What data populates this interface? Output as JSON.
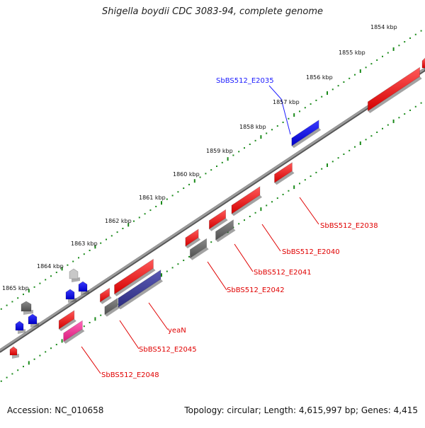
{
  "title": "Shigella boydii CDC 3083-94, complete genome",
  "footer": {
    "accession": "Accession: NC_010658",
    "summary": "Topology: circular; Length: 4,615,997 bp; Genes: 4,415"
  },
  "scale_labels": [
    "1854 kbp",
    "1855 kbp",
    "1856 kbp",
    "1857 kbp",
    "1858 kbp",
    "1859 kbp",
    "1860 kbp",
    "1861 kbp",
    "1862 kbp",
    "1863 kbp",
    "1864 kbp",
    "1865 kbp"
  ],
  "gene_labels": [
    {
      "text": "SbBS512_E2035",
      "color": "#1a1aff"
    },
    {
      "text": "SbBS512_E2038",
      "color": "#e00000"
    },
    {
      "text": "SbBS512_E2040",
      "color": "#e00000"
    },
    {
      "text": "SbBS512_E2041",
      "color": "#e00000"
    },
    {
      "text": "SbBS512_E2042",
      "color": "#e00000"
    },
    {
      "text": "yeaN",
      "color": "#e00000"
    },
    {
      "text": "SbBS512_E2045",
      "color": "#e00000"
    },
    {
      "text": "SbBS512_E2048",
      "color": "#e00000"
    }
  ],
  "colors": {
    "backbone": "#808080",
    "tick": "#1a8a1a",
    "red_feature": "#ff0000",
    "blue_feature": "#0000ff",
    "gray_feature": "#666666",
    "navy_feature": "#3c3c96",
    "pink_feature": "#ff3399",
    "lightgray_feature": "#c8c8c8"
  }
}
